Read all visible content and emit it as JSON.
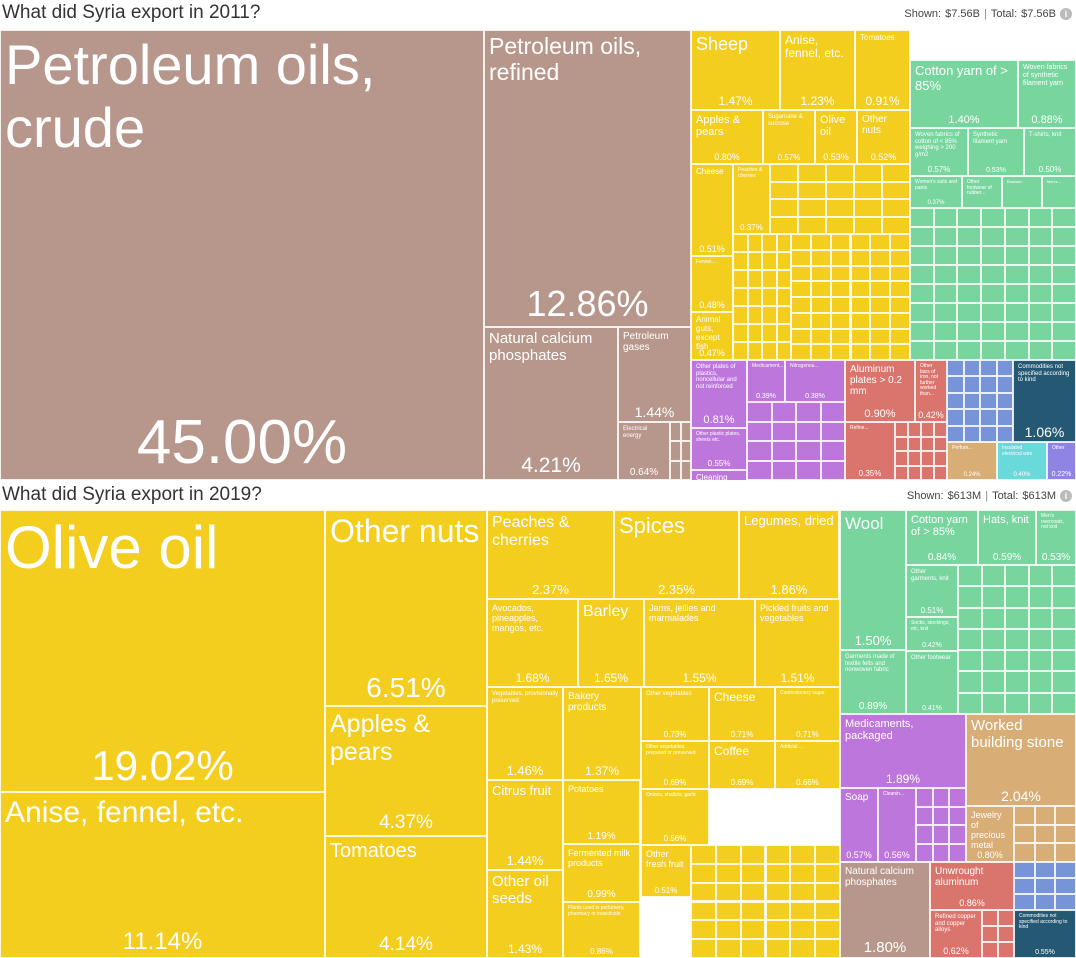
{
  "colors": {
    "brown": "#b7978c",
    "yellow": "#f3ce1e",
    "green": "#78d59e",
    "purple": "#bd77dc",
    "red": "#d9756d",
    "blue": "#7794d9",
    "tan": "#d8ad76",
    "navy": "#255872",
    "teal": "#6ad9d9",
    "violet": "#8f84e4"
  },
  "panels": [
    {
      "title": "What did Syria export in 2011?",
      "shown_label": "Shown:",
      "shown_value": "$7.56B",
      "total_label": "Total:",
      "total_value": "$7.56B",
      "info_icon": "info-icon"
    },
    {
      "title": "What did Syria export in 2019?",
      "shown_label": "Shown:",
      "shown_value": "$613M",
      "total_label": "Total:",
      "total_value": "$613M",
      "info_icon": "info-icon"
    }
  ],
  "chart_data": [
    {
      "type": "treemap",
      "title": "What did Syria export in 2011?",
      "unit": "share of exports (%)",
      "items": [
        {
          "name": "Petroleum oils, crude",
          "value": 45.0,
          "percent": "45.00%",
          "color": "brown"
        },
        {
          "name": "Petroleum oils, refined",
          "value": 12.86,
          "percent": "12.86%",
          "color": "brown"
        },
        {
          "name": "Natural calcium phosphates",
          "value": 4.21,
          "percent": "4.21%",
          "color": "brown"
        },
        {
          "name": "Petroleum gases",
          "value": 1.44,
          "percent": "1.44%",
          "color": "brown"
        },
        {
          "name": "Electrical energy",
          "value": 0.64,
          "percent": "0.64%",
          "color": "brown"
        },
        {
          "name": "Sheep",
          "value": 1.47,
          "percent": "1.47%",
          "color": "yellow"
        },
        {
          "name": "Anise, fennel, etc.",
          "value": 1.23,
          "percent": "1.23%",
          "color": "yellow"
        },
        {
          "name": "Tomatoes",
          "value": 0.91,
          "percent": "0.91%",
          "color": "yellow"
        },
        {
          "name": "Apples & pears",
          "value": 0.8,
          "percent": "0.80%",
          "color": "yellow"
        },
        {
          "name": "Sugarcane & sucrose",
          "value": 0.57,
          "percent": "0.57%",
          "color": "yellow"
        },
        {
          "name": "Olive oil",
          "value": 0.53,
          "percent": "0.53%",
          "color": "yellow"
        },
        {
          "name": "Other nuts",
          "value": 0.52,
          "percent": "0.52%",
          "color": "yellow"
        },
        {
          "name": "Cheese",
          "value": 0.51,
          "percent": "0.51%",
          "color": "yellow"
        },
        {
          "name": "Peaches & cherries",
          "value": 0.37,
          "percent": "0.37%",
          "color": "yellow"
        },
        {
          "name": "Fennel...",
          "value": 0.48,
          "percent": "0.48%",
          "color": "yellow"
        },
        {
          "name": "Animal guts, except fish",
          "value": 0.47,
          "percent": "0.47%",
          "color": "yellow"
        },
        {
          "name": "Cotton yarn of > 85%",
          "value": 1.4,
          "percent": "1.40%",
          "color": "green"
        },
        {
          "name": "Woven fabrics of synthetic filament yarn",
          "value": 0.88,
          "percent": "0.88%",
          "color": "green"
        },
        {
          "name": "Woven fabrics of cotton of < 85% weighing > 200 g/m2",
          "value": 0.57,
          "percent": "0.57%",
          "color": "green"
        },
        {
          "name": "Synthetic filament yarn",
          "value": 0.53,
          "percent": "0.53%",
          "color": "green"
        },
        {
          "name": "T-shirts, knit",
          "value": 0.5,
          "percent": "0.50%",
          "color": "green"
        },
        {
          "name": "Women's suits and pants",
          "value": 0.37,
          "percent": "0.37%",
          "color": "green"
        },
        {
          "name": "Other footwear of rubber...",
          "value": 0.35,
          "percent": "",
          "color": "green"
        },
        {
          "name": "Brassier...",
          "value": 0.33,
          "percent": "",
          "color": "green"
        },
        {
          "name": "Men's...",
          "value": 0.32,
          "percent": "",
          "color": "green"
        },
        {
          "name": "Other plates of plastics, noncellular and not reinforced",
          "value": 0.81,
          "percent": "0.81%",
          "color": "purple"
        },
        {
          "name": "Medicament...",
          "value": 0.39,
          "percent": "0.39%",
          "color": "purple"
        },
        {
          "name": "Nitrogenou...",
          "value": 0.38,
          "percent": "0.38%",
          "color": "purple"
        },
        {
          "name": "Other plastic plates, sheets etc.",
          "value": 0.55,
          "percent": "0.55%",
          "color": "purple"
        },
        {
          "name": "Cleaning products",
          "value": 0.44,
          "percent": "0.44%",
          "color": "purple"
        },
        {
          "name": "Aluminum plates > 0.2 mm",
          "value": 0.9,
          "percent": "0.90%",
          "color": "red"
        },
        {
          "name": "Other bars of iron, not further worked than...",
          "value": 0.42,
          "percent": "0.42%",
          "color": "red"
        },
        {
          "name": "Refine...",
          "value": 0.35,
          "percent": "0.35%",
          "color": "red"
        },
        {
          "name": "Commodities not specified according to kind",
          "value": 1.06,
          "percent": "1.06%",
          "color": "navy"
        },
        {
          "name": "Perfum...",
          "value": 0.24,
          "percent": "0.24%",
          "color": "tan"
        },
        {
          "name": "Insulated electrical wire",
          "value": 0.4,
          "percent": "0.40%",
          "color": "teal"
        },
        {
          "name": "Other",
          "value": 0.22,
          "percent": "0.22%",
          "color": "violet"
        }
      ]
    },
    {
      "type": "treemap",
      "title": "What did Syria export in 2019?",
      "unit": "share of exports (%)",
      "items": [
        {
          "name": "Olive oil",
          "value": 19.02,
          "percent": "19.02%",
          "color": "yellow"
        },
        {
          "name": "Anise, fennel, etc.",
          "value": 11.14,
          "percent": "11.14%",
          "color": "yellow"
        },
        {
          "name": "Other nuts",
          "value": 6.51,
          "percent": "6.51%",
          "color": "yellow"
        },
        {
          "name": "Apples & pears",
          "value": 4.37,
          "percent": "4.37%",
          "color": "yellow"
        },
        {
          "name": "Tomatoes",
          "value": 4.14,
          "percent": "4.14%",
          "color": "yellow"
        },
        {
          "name": "Peaches & cherries",
          "value": 2.37,
          "percent": "2.37%",
          "color": "yellow"
        },
        {
          "name": "Spices",
          "value": 2.35,
          "percent": "2.35%",
          "color": "yellow"
        },
        {
          "name": "Legumes, dried",
          "value": 1.86,
          "percent": "1.86%",
          "color": "yellow"
        },
        {
          "name": "Avocados, pineapples, mangos, etc.",
          "value": 1.68,
          "percent": "1.68%",
          "color": "yellow"
        },
        {
          "name": "Barley",
          "value": 1.65,
          "percent": "1.65%",
          "color": "yellow"
        },
        {
          "name": "Jams, jellies and marmalades",
          "value": 1.55,
          "percent": "1.55%",
          "color": "yellow"
        },
        {
          "name": "Pickled fruits and vegetables",
          "value": 1.51,
          "percent": "1.51%",
          "color": "yellow"
        },
        {
          "name": "Vegetables, provisionally preserved",
          "value": 1.46,
          "percent": "1.46%",
          "color": "yellow"
        },
        {
          "name": "Bakery products",
          "value": 1.37,
          "percent": "1.37%",
          "color": "yellow"
        },
        {
          "name": "Other vegetables",
          "value": 0.73,
          "percent": "0.73%",
          "color": "yellow"
        },
        {
          "name": "Cheese",
          "value": 0.71,
          "percent": "0.71%",
          "color": "yellow"
        },
        {
          "name": "Confectionery sugar",
          "value": 0.71,
          "percent": "0.71%",
          "color": "yellow"
        },
        {
          "name": "Citrus fruit",
          "value": 1.44,
          "percent": "1.44%",
          "color": "yellow"
        },
        {
          "name": "Potatoes",
          "value": 1.19,
          "percent": "1.19%",
          "color": "yellow"
        },
        {
          "name": "Other vegetables, prepared or preserved",
          "value": 0.69,
          "percent": "0.69%",
          "color": "yellow"
        },
        {
          "name": "Coffee",
          "value": 0.69,
          "percent": "0.69%",
          "color": "yellow"
        },
        {
          "name": "Artificial ...",
          "value": 0.66,
          "percent": "0.66%",
          "color": "yellow"
        },
        {
          "name": "Onions, shallots, garlic",
          "value": 0.56,
          "percent": "0.56%",
          "color": "yellow"
        },
        {
          "name": "Fermented milk products",
          "value": 0.99,
          "percent": "0.99%",
          "color": "yellow"
        },
        {
          "name": "Other fresh fruit",
          "value": 0.51,
          "percent": "0.51%",
          "color": "yellow"
        },
        {
          "name": "Other oil seeds",
          "value": 1.43,
          "percent": "1.43%",
          "color": "yellow"
        },
        {
          "name": "Plants used in perfumery, pharmacy or insecticide",
          "value": 0.86,
          "percent": "0.86%",
          "color": "yellow"
        },
        {
          "name": "Wool",
          "value": 1.5,
          "percent": "1.50%",
          "color": "green"
        },
        {
          "name": "Cotton yarn of > 85%",
          "value": 0.84,
          "percent": "0.84%",
          "color": "green"
        },
        {
          "name": "Hats, knit",
          "value": 0.59,
          "percent": "0.59%",
          "color": "green"
        },
        {
          "name": "Men's overcoats, not knit",
          "value": 0.53,
          "percent": "0.53%",
          "color": "green"
        },
        {
          "name": "Garments made of textile felts and nonwoven fabric",
          "value": 0.89,
          "percent": "0.89%",
          "color": "green"
        },
        {
          "name": "Other garments, knit",
          "value": 0.51,
          "percent": "0.51%",
          "color": "green"
        },
        {
          "name": "Socks, stockings, etc, knit",
          "value": 0.42,
          "percent": "0.42%",
          "color": "green"
        },
        {
          "name": "Other footwear",
          "value": 0.41,
          "percent": "0.41%",
          "color": "green"
        },
        {
          "name": "Medicaments, packaged",
          "value": 1.89,
          "percent": "1.89%",
          "color": "purple"
        },
        {
          "name": "Soap",
          "value": 0.57,
          "percent": "0.57%",
          "color": "purple"
        },
        {
          "name": "Cleanin...",
          "value": 0.56,
          "percent": "0.56%",
          "color": "purple"
        },
        {
          "name": "Worked building stone",
          "value": 2.04,
          "percent": "2.04%",
          "color": "tan"
        },
        {
          "name": "Jewelry of precious metal",
          "value": 0.8,
          "percent": "0.80%",
          "color": "tan"
        },
        {
          "name": "Natural calcium phosphates",
          "value": 1.8,
          "percent": "1.80%",
          "color": "brown"
        },
        {
          "name": "Unwrought aluminum",
          "value": 0.86,
          "percent": "0.86%",
          "color": "red"
        },
        {
          "name": "Refined copper and copper alloys",
          "value": 0.62,
          "percent": "0.62%",
          "color": "red"
        },
        {
          "name": "Commodities not specified according to kind",
          "value": 0.55,
          "percent": "0.55%",
          "color": "navy"
        }
      ]
    }
  ]
}
